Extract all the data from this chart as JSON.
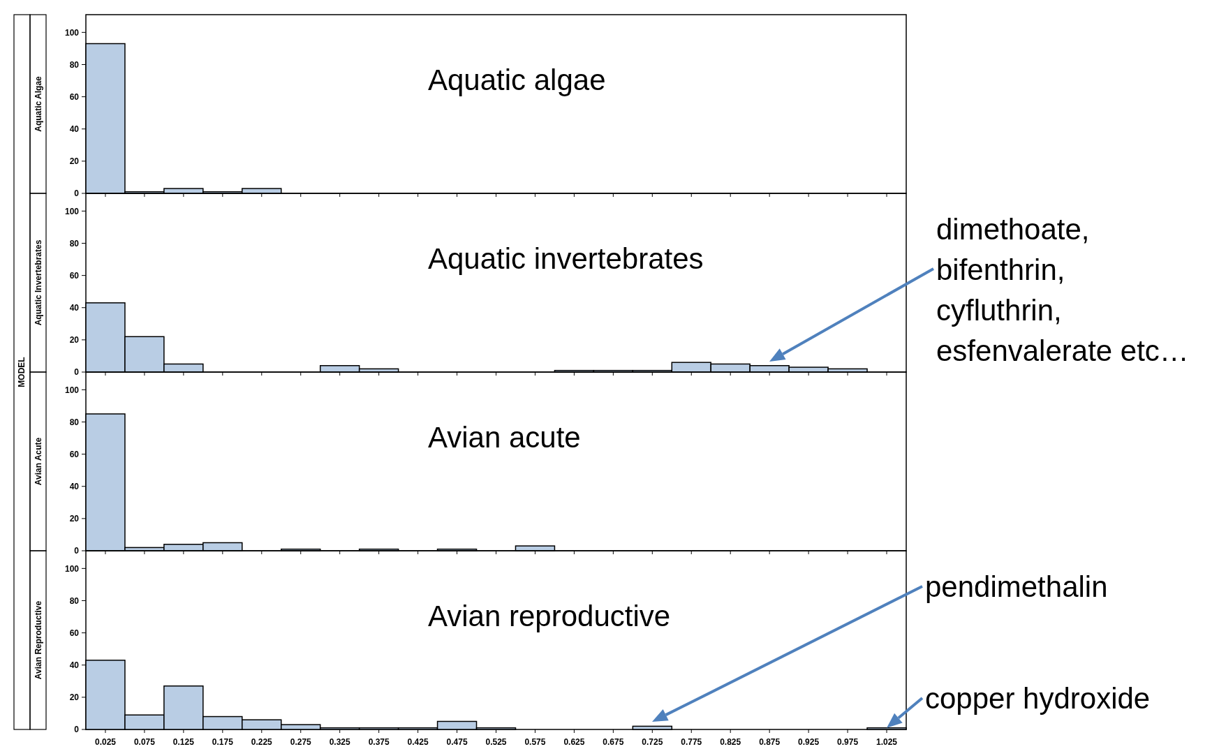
{
  "chart_data": [
    {
      "type": "histogram",
      "title": "Aquatic algae",
      "ylabel": "Aquatic Algae",
      "color": "#b9cde4",
      "bins": [
        0,
        0.05,
        0.1,
        0.15,
        0.2,
        0.25,
        0.3,
        0.35,
        0.4,
        0.45,
        0.5,
        0.55,
        0.6,
        0.65,
        0.7,
        0.75,
        0.8,
        0.85,
        0.9,
        0.95,
        1,
        1.05
      ],
      "values": [
        93,
        1,
        3,
        1,
        3,
        0,
        0,
        0,
        0,
        0,
        0,
        0,
        0,
        0,
        0,
        0,
        0,
        0,
        0,
        0,
        0
      ],
      "xlim": [
        0,
        1.05
      ],
      "ylim": [
        0,
        111
      ],
      "yticks": [
        0,
        20,
        40,
        60,
        80,
        100
      ],
      "xticks": [
        0.025,
        0.075,
        0.125,
        0.175,
        0.225,
        0.275,
        0.325,
        0.375,
        0.425,
        0.475,
        0.525,
        0.575,
        0.625,
        0.675,
        0.725,
        0.775,
        0.825,
        0.875,
        0.925,
        0.975,
        1.025
      ],
      "tick_labels": "y",
      "grid": false,
      "annotations": [
        "MODEL"
      ]
    },
    {
      "type": "histogram",
      "title": "Aquatic invertebrates",
      "ylabel": "Aquatic Invertebrates",
      "color": "#b9cde4",
      "bins": [
        0,
        0.05,
        0.1,
        0.15,
        0.2,
        0.25,
        0.3,
        0.35,
        0.4,
        0.45,
        0.5,
        0.55,
        0.6,
        0.65,
        0.7,
        0.75,
        0.8,
        0.85,
        0.9,
        0.95,
        1,
        1.05
      ],
      "values": [
        43,
        22,
        5,
        0,
        0,
        0,
        4,
        2,
        0,
        0,
        0,
        0,
        1,
        1,
        1,
        6,
        5,
        4,
        3,
        2,
        0
      ],
      "xlim": [
        0,
        1.05
      ],
      "ylim": [
        0,
        111
      ],
      "yticks": [
        0,
        20,
        40,
        60,
        80,
        100
      ],
      "xticks": [
        0.025,
        0.075,
        0.125,
        0.175,
        0.225,
        0.275,
        0.325,
        0.375,
        0.425,
        0.475,
        0.525,
        0.575,
        0.625,
        0.675,
        0.725,
        0.775,
        0.825,
        0.875,
        0.925,
        0.975,
        1.025
      ],
      "tick_labels": "y",
      "grid": false,
      "annotations": [
        "dimethoate,\nbifenthrin,\ncyfluthrin,\nesfenvalerate etc…"
      ]
    },
    {
      "type": "histogram",
      "title": "Avian acute",
      "ylabel": "Avian Acute",
      "color": "#b9cde4",
      "bins": [
        0,
        0.05,
        0.1,
        0.15,
        0.2,
        0.25,
        0.3,
        0.35,
        0.4,
        0.45,
        0.5,
        0.55,
        0.6,
        0.65,
        0.7,
        0.75,
        0.8,
        0.85,
        0.9,
        0.95,
        1,
        1.05
      ],
      "values": [
        85,
        2,
        4,
        5,
        0,
        1,
        0,
        1,
        0,
        1,
        0,
        3,
        0,
        0,
        0,
        0,
        0,
        0,
        0,
        0,
        0
      ],
      "xlim": [
        0,
        1.05
      ],
      "ylim": [
        0,
        111
      ],
      "yticks": [
        0,
        20,
        40,
        60,
        80,
        100
      ],
      "xticks": [
        0.025,
        0.075,
        0.125,
        0.175,
        0.225,
        0.275,
        0.325,
        0.375,
        0.425,
        0.475,
        0.525,
        0.575,
        0.625,
        0.675,
        0.725,
        0.775,
        0.825,
        0.875,
        0.925,
        0.975,
        1.025
      ],
      "tick_labels": "y",
      "grid": false
    },
    {
      "type": "histogram",
      "title": "Avian reproductive",
      "ylabel": "Avian Reproductive",
      "color": "#b9cde4",
      "bins": [
        0,
        0.05,
        0.1,
        0.15,
        0.2,
        0.25,
        0.3,
        0.35,
        0.4,
        0.45,
        0.5,
        0.55,
        0.6,
        0.65,
        0.7,
        0.75,
        0.8,
        0.85,
        0.9,
        0.95,
        1,
        1.05
      ],
      "values": [
        43,
        9,
        27,
        8,
        6,
        3,
        1,
        1,
        1,
        5,
        1,
        0,
        0,
        0,
        2,
        0,
        0,
        0,
        0,
        0,
        1
      ],
      "xlim": [
        0,
        1.05
      ],
      "ylim": [
        0,
        111
      ],
      "yticks": [
        0,
        20,
        40,
        60,
        80,
        100
      ],
      "xticks": [
        0.025,
        0.075,
        0.125,
        0.175,
        0.225,
        0.275,
        0.325,
        0.375,
        0.425,
        0.475,
        0.525,
        0.575,
        0.625,
        0.675,
        0.725,
        0.775,
        0.825,
        0.875,
        0.925,
        0.975,
        1.025
      ],
      "grid": false,
      "annotations": [
        "pendimethalin",
        {
          "text": "copper hydroxide",
          "x": 1.025,
          "y": 1
        }
      ]
    }
  ]
}
